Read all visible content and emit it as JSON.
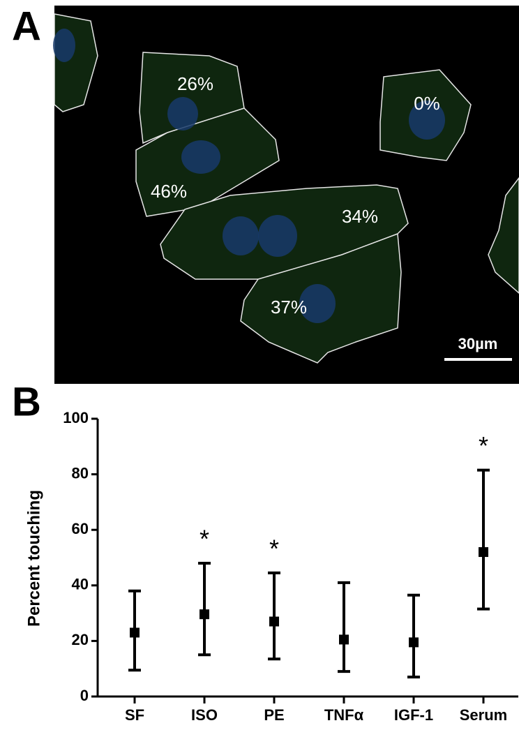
{
  "panel_a": {
    "label": "A",
    "annotations": [
      "26%",
      "0%",
      "46%",
      "34%",
      "37%"
    ],
    "scale_bar": "30µm"
  },
  "panel_b_label": "B",
  "chart_data": {
    "type": "errorbar",
    "y_label": "Percent touching",
    "categories": [
      "SF",
      "ISO",
      "PE",
      "TNFα",
      "IGF-1",
      "Serum"
    ],
    "values": [
      23,
      29.6,
      27,
      20.5,
      19.5,
      52
    ],
    "lower": [
      9.5,
      15,
      13.5,
      9,
      7,
      31.5
    ],
    "upper": [
      38,
      48,
      44.5,
      41,
      36.5,
      81.5
    ],
    "significance": [
      null,
      "*",
      "*",
      null,
      null,
      "*"
    ],
    "color": "#000000",
    "ylim": [
      0,
      100
    ],
    "yticks": [
      0,
      20,
      40,
      60,
      80,
      100
    ]
  }
}
